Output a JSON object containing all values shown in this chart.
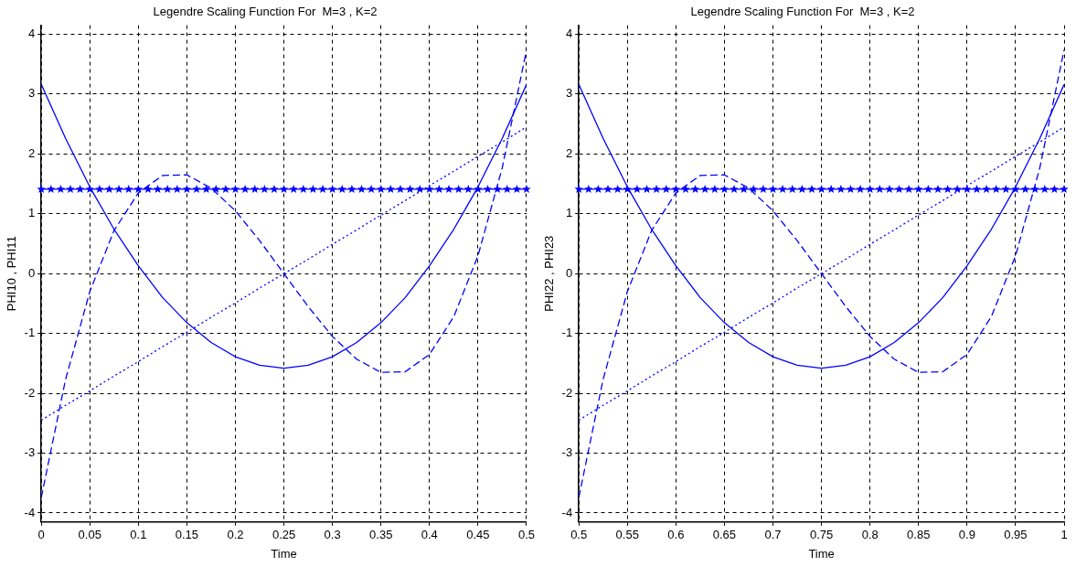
{
  "chart_data": [
    {
      "type": "line",
      "title": "Legendre Scaling Function For  M=3 , K=2",
      "xlabel": "Time",
      "ylabel": "PHI10 , PHI11",
      "x": [
        0,
        0.025,
        0.05,
        0.075,
        0.1,
        0.125,
        0.15,
        0.175,
        0.2,
        0.225,
        0.25,
        0.275,
        0.3,
        0.325,
        0.35,
        0.375,
        0.4,
        0.425,
        0.45,
        0.475,
        0.5
      ],
      "series": [
        {
          "color": "#0000ff",
          "marker": "star",
          "line_style": "solid",
          "x": [
            0,
            0.01,
            0.02,
            0.03,
            0.04,
            0.05,
            0.06,
            0.07,
            0.08,
            0.09,
            0.1,
            0.11,
            0.12,
            0.13,
            0.14,
            0.15,
            0.16,
            0.17,
            0.18,
            0.19,
            0.2,
            0.21,
            0.22,
            0.23,
            0.24,
            0.25,
            0.26,
            0.27,
            0.28,
            0.29,
            0.3,
            0.31,
            0.32,
            0.33,
            0.34,
            0.35,
            0.36,
            0.37,
            0.38,
            0.39,
            0.4,
            0.41,
            0.42,
            0.43,
            0.44,
            0.45,
            0.46,
            0.47,
            0.48,
            0.49,
            0.5
          ],
          "values": [
            1.41,
            1.41,
            1.41,
            1.41,
            1.41,
            1.41,
            1.41,
            1.41,
            1.41,
            1.41,
            1.41,
            1.41,
            1.41,
            1.41,
            1.41,
            1.41,
            1.41,
            1.41,
            1.41,
            1.41,
            1.41,
            1.41,
            1.41,
            1.41,
            1.41,
            1.41,
            1.41,
            1.41,
            1.41,
            1.41,
            1.41,
            1.41,
            1.41,
            1.41,
            1.41,
            1.41,
            1.41,
            1.41,
            1.41,
            1.41,
            1.41,
            1.41,
            1.41,
            1.41,
            1.41,
            1.41,
            1.41,
            1.41,
            1.41,
            1.41,
            1.41
          ]
        },
        {
          "color": "#0000ff",
          "line_style": "dotted",
          "values": [
            -2.45,
            -2.2,
            -1.96,
            -1.71,
            -1.47,
            -1.22,
            -0.98,
            -0.73,
            -0.49,
            -0.24,
            0,
            0.24,
            0.49,
            0.73,
            0.98,
            1.22,
            1.47,
            1.71,
            1.96,
            2.2,
            2.45
          ]
        },
        {
          "color": "#0000ff",
          "line_style": "solid",
          "values": [
            3.16,
            2.26,
            1.45,
            0.74,
            0.13,
            -0.4,
            -0.82,
            -1.15,
            -1.39,
            -1.53,
            -1.58,
            -1.53,
            -1.39,
            -1.15,
            -0.82,
            -0.4,
            0.13,
            0.74,
            1.45,
            2.26,
            3.16
          ]
        },
        {
          "color": "#0000ff",
          "line_style": "dashed",
          "values": [
            -3.74,
            -1.77,
            -0.3,
            0.72,
            1.35,
            1.64,
            1.65,
            1.43,
            1.05,
            0.55,
            0,
            -0.55,
            -1.05,
            -1.43,
            -1.65,
            -1.64,
            -1.35,
            -0.72,
            0.3,
            1.77,
            3.74
          ]
        }
      ],
      "xlim": [
        0,
        0.5
      ],
      "xticks": [
        0,
        0.05,
        0.1,
        0.15,
        0.2,
        0.25,
        0.3,
        0.35,
        0.4,
        0.45,
        0.5
      ],
      "ylim": [
        -4.15,
        4.15
      ],
      "yticks": [
        -4,
        -3,
        -2,
        -1,
        0,
        1,
        2,
        3,
        4
      ],
      "grid": true,
      "marker": "none",
      "legend": false
    },
    {
      "type": "line",
      "title": "Legendre Scaling Function For  M=3 , K=2",
      "xlabel": "Time",
      "ylabel": "PHI22 , PHI23",
      "x": [
        0.5,
        0.525,
        0.55,
        0.575,
        0.6,
        0.625,
        0.65,
        0.675,
        0.7,
        0.725,
        0.75,
        0.775,
        0.8,
        0.825,
        0.85,
        0.875,
        0.9,
        0.925,
        0.95,
        0.975,
        1
      ],
      "series": [
        {
          "color": "#0000ff",
          "marker": "star",
          "line_style": "solid",
          "x": [
            0.5,
            0.51,
            0.52,
            0.53,
            0.54,
            0.55,
            0.56,
            0.57,
            0.58,
            0.59,
            0.6,
            0.61,
            0.62,
            0.63,
            0.64,
            0.65,
            0.66,
            0.67,
            0.68,
            0.69,
            0.7,
            0.71,
            0.72,
            0.73,
            0.74,
            0.75,
            0.76,
            0.77,
            0.78,
            0.79,
            0.8,
            0.81,
            0.82,
            0.83,
            0.84,
            0.85,
            0.86,
            0.87,
            0.88,
            0.89,
            0.9,
            0.91,
            0.92,
            0.93,
            0.94,
            0.95,
            0.96,
            0.97,
            0.98,
            0.99,
            1
          ],
          "values": [
            1.41,
            1.41,
            1.41,
            1.41,
            1.41,
            1.41,
            1.41,
            1.41,
            1.41,
            1.41,
            1.41,
            1.41,
            1.41,
            1.41,
            1.41,
            1.41,
            1.41,
            1.41,
            1.41,
            1.41,
            1.41,
            1.41,
            1.41,
            1.41,
            1.41,
            1.41,
            1.41,
            1.41,
            1.41,
            1.41,
            1.41,
            1.41,
            1.41,
            1.41,
            1.41,
            1.41,
            1.41,
            1.41,
            1.41,
            1.41,
            1.41,
            1.41,
            1.41,
            1.41,
            1.41,
            1.41,
            1.41,
            1.41,
            1.41,
            1.41,
            1.41
          ]
        },
        {
          "color": "#0000ff",
          "line_style": "dotted",
          "values": [
            -2.45,
            -2.2,
            -1.96,
            -1.71,
            -1.47,
            -1.22,
            -0.98,
            -0.73,
            -0.49,
            -0.24,
            0,
            0.24,
            0.49,
            0.73,
            0.98,
            1.22,
            1.47,
            1.71,
            1.96,
            2.2,
            2.45
          ]
        },
        {
          "color": "#0000ff",
          "line_style": "solid",
          "values": [
            3.16,
            2.26,
            1.45,
            0.74,
            0.13,
            -0.4,
            -0.82,
            -1.15,
            -1.39,
            -1.53,
            -1.58,
            -1.53,
            -1.39,
            -1.15,
            -0.82,
            -0.4,
            0.13,
            0.74,
            1.45,
            2.26,
            3.16
          ]
        },
        {
          "color": "#0000ff",
          "line_style": "dashed",
          "values": [
            -3.74,
            -1.77,
            -0.3,
            0.72,
            1.35,
            1.64,
            1.65,
            1.43,
            1.05,
            0.55,
            0,
            -0.55,
            -1.05,
            -1.43,
            -1.65,
            -1.64,
            -1.35,
            -0.72,
            0.3,
            1.77,
            3.74
          ]
        }
      ],
      "xlim": [
        0.5,
        1
      ],
      "xticks": [
        0.5,
        0.55,
        0.6,
        0.65,
        0.7,
        0.75,
        0.8,
        0.85,
        0.9,
        0.95,
        1
      ],
      "ylim": [
        -4.15,
        4.15
      ],
      "yticks": [
        -4,
        -3,
        -2,
        -1,
        0,
        1,
        2,
        3,
        4
      ],
      "grid": true,
      "marker": "none",
      "legend": false
    }
  ]
}
